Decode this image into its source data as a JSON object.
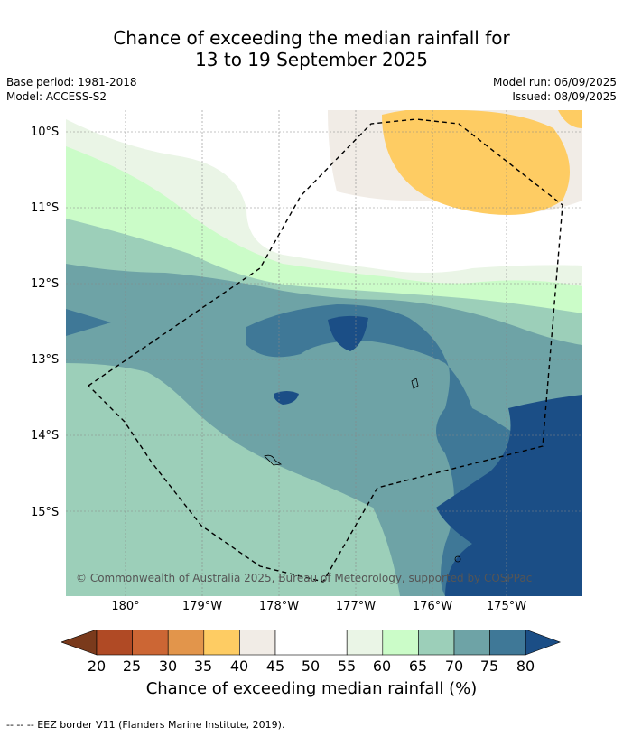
{
  "title": {
    "line1": "Chance of exceeding the median rainfall for",
    "line2": "13 to 19 September 2025"
  },
  "meta": {
    "base_period": "Base period: 1981-2018",
    "model": "Model: ACCESS-S2",
    "model_run": "Model run: 06/09/2025",
    "issued": "Issued: 08/09/2025"
  },
  "axes": {
    "lat_labels": [
      "10°S",
      "11°S",
      "12°S",
      "13°S",
      "14°S",
      "15°S"
    ],
    "lon_labels": [
      "180°",
      "179°W",
      "178°W",
      "177°W",
      "176°W",
      "175°W"
    ]
  },
  "copyright": "© Commonwealth of Australia 2025, Bureau of Meteorology, supported by COSPPac",
  "colorbar": {
    "title": "Chance of exceeding median rainfall (%)",
    "labels": [
      "20",
      "25",
      "30",
      "35",
      "40",
      "45",
      "50",
      "55",
      "60",
      "65",
      "70",
      "75",
      "80"
    ],
    "colors": [
      "#7a3a1c",
      "#b04a25",
      "#cc6634",
      "#e2954b",
      "#fecc63",
      "#f1ece6",
      "#ffffff",
      "#ffffff",
      "#eaf5e6",
      "#cbfcc8",
      "#9ccfb9",
      "#6ea3a6",
      "#3f7897",
      "#1b4e86"
    ]
  },
  "footer": "--  --  -- EEZ border V11 (Flanders Marine Institute, 2019)."
}
